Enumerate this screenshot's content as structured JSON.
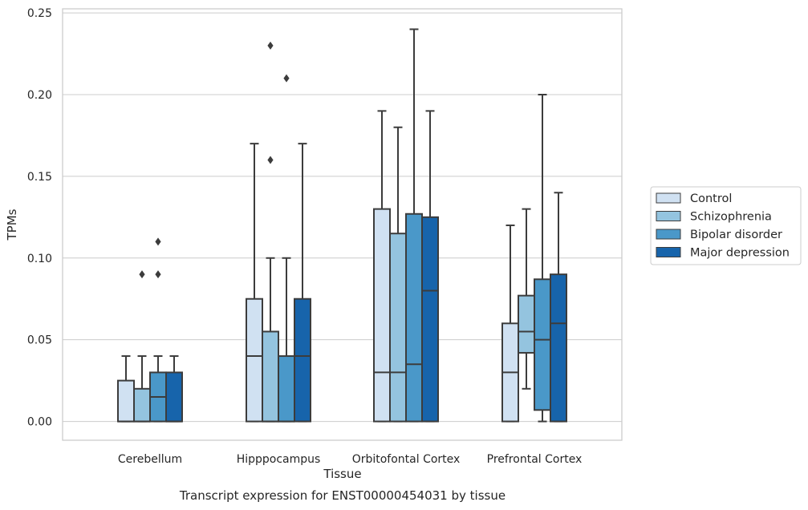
{
  "chart_data": {
    "type": "boxplot",
    "title": "",
    "caption": "Transcript expression for ENST00000454031 by tissue",
    "xlabel": "Tissue",
    "ylabel": "TPMs",
    "ylim": [
      -0.0115,
      0.2525
    ],
    "yticks": [
      "0.00",
      "0.05",
      "0.10",
      "0.15",
      "0.20",
      "0.25"
    ],
    "ytick_values": [
      0,
      0.05,
      0.1,
      0.15,
      0.2,
      0.25
    ],
    "grid": "horizontal",
    "legend_position": "right",
    "categories": [
      "Cerebellum",
      "Hipppocampus",
      "Orbitofontal Cortex",
      "Prefrontal Cortex"
    ],
    "series": [
      {
        "name": "Control",
        "color": "#d0e1f2",
        "boxes": [
          {
            "whislo": 0,
            "q1": 0,
            "med": 0,
            "q3": 0.025,
            "whishi": 0.04,
            "fliers": []
          },
          {
            "whislo": 0,
            "q1": 0,
            "med": 0.04,
            "q3": 0.075,
            "whishi": 0.17,
            "fliers": []
          },
          {
            "whislo": 0,
            "q1": 0,
            "med": 0.03,
            "q3": 0.13,
            "whishi": 0.19,
            "fliers": []
          },
          {
            "whislo": 0,
            "q1": 0,
            "med": 0.03,
            "q3": 0.06,
            "whishi": 0.12,
            "fliers": []
          }
        ]
      },
      {
        "name": "Schizophrenia",
        "color": "#94c4df",
        "boxes": [
          {
            "whislo": 0,
            "q1": 0,
            "med": 0,
            "q3": 0.02,
            "whishi": 0.04,
            "fliers": [
              0.09
            ]
          },
          {
            "whislo": 0,
            "q1": 0,
            "med": 0,
            "q3": 0.055,
            "whishi": 0.1,
            "fliers": [
              0.16,
              0.23
            ]
          },
          {
            "whislo": 0,
            "q1": 0,
            "med": 0.03,
            "q3": 0.115,
            "whishi": 0.18,
            "fliers": []
          },
          {
            "whislo": 0.02,
            "q1": 0.042,
            "med": 0.055,
            "q3": 0.077,
            "whishi": 0.13,
            "fliers": []
          }
        ]
      },
      {
        "name": "Bipolar disorder",
        "color": "#4a98c9",
        "boxes": [
          {
            "whislo": 0,
            "q1": 0,
            "med": 0.015,
            "q3": 0.03,
            "whishi": 0.04,
            "fliers": [
              0.09,
              0.11
            ]
          },
          {
            "whislo": 0,
            "q1": 0,
            "med": 0,
            "q3": 0.04,
            "whishi": 0.1,
            "fliers": [
              0.21
            ]
          },
          {
            "whislo": 0,
            "q1": 0,
            "med": 0.035,
            "q3": 0.127,
            "whishi": 0.24,
            "fliers": []
          },
          {
            "whislo": 0,
            "q1": 0.007,
            "med": 0.05,
            "q3": 0.087,
            "whishi": 0.2,
            "fliers": []
          }
        ]
      },
      {
        "name": "Major depression",
        "color": "#1764ab",
        "boxes": [
          {
            "whislo": 0,
            "q1": 0,
            "med": 0,
            "q3": 0.03,
            "whishi": 0.04,
            "fliers": []
          },
          {
            "whislo": 0,
            "q1": 0,
            "med": 0.04,
            "q3": 0.075,
            "whishi": 0.17,
            "fliers": []
          },
          {
            "whislo": 0,
            "q1": 0,
            "med": 0.08,
            "q3": 0.125,
            "whishi": 0.19,
            "fliers": []
          },
          {
            "whislo": 0,
            "q1": 0,
            "med": 0.06,
            "q3": 0.09,
            "whishi": 0.14,
            "fliers": []
          }
        ]
      }
    ]
  },
  "colors": {
    "grid": "#cccccc",
    "frame": "#cccccc",
    "box_edge": "#3c3c3c"
  }
}
